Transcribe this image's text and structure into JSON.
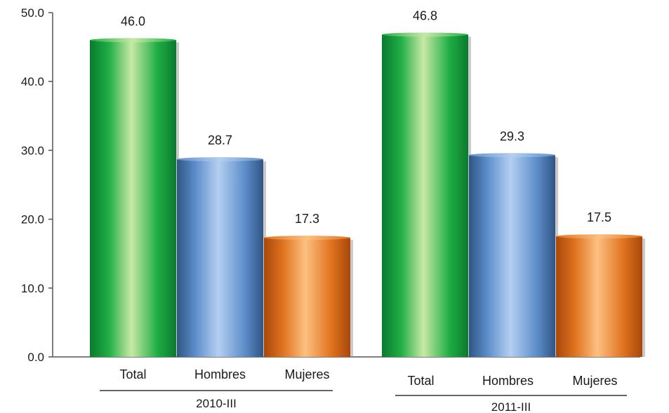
{
  "chart_data": {
    "type": "bar",
    "groups": [
      "2010-III",
      "2011-III"
    ],
    "categories": [
      "Total",
      "Hombres",
      "Mujeres"
    ],
    "series": [
      {
        "values": [
          46.0,
          28.7,
          17.3
        ]
      },
      {
        "values": [
          46.8,
          29.3,
          17.5
        ]
      }
    ],
    "value_labels": [
      [
        "46.0",
        "28.7",
        "17.3"
      ],
      [
        "46.8",
        "29.3",
        "17.5"
      ]
    ],
    "y_ticks": [
      "0.0",
      "10.0",
      "20.0",
      "30.0",
      "40.0",
      "50.0"
    ],
    "ylim": [
      0,
      50
    ],
    "grid": false,
    "legend": "none",
    "colors": {
      "Total": {
        "dark": "#0a7a2e",
        "mid": "#1fae45",
        "light": "#c8e9a6"
      },
      "Hombres": {
        "dark": "#2f5585",
        "mid": "#5f8fcc",
        "light": "#b4cff0"
      },
      "Mujeres": {
        "dark": "#a8470a",
        "mid": "#e0731f",
        "light": "#fcc081"
      }
    }
  }
}
